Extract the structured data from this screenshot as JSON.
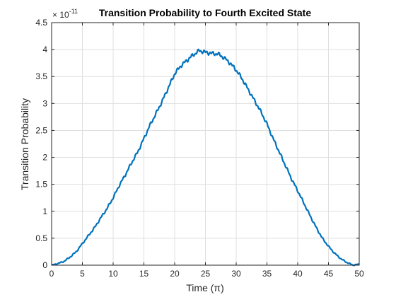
{
  "chart_data": {
    "type": "line",
    "title": "Transition Probability to Fourth Excited State",
    "xlabel": "Time (π)",
    "ylabel": "Transition Probability",
    "y_exponent_base": "× 10",
    "y_exponent_power": "-11",
    "xlim": [
      0,
      50
    ],
    "ylim": [
      0,
      4.5
    ],
    "x_ticks": [
      0,
      5,
      10,
      15,
      20,
      25,
      30,
      35,
      40,
      45,
      50
    ],
    "x_tick_labels": [
      "0",
      "5",
      "10",
      "15",
      "20",
      "25",
      "30",
      "35",
      "40",
      "45",
      "50"
    ],
    "y_ticks": [
      0,
      0.5,
      1,
      1.5,
      2,
      2.5,
      3,
      3.5,
      4,
      4.5
    ],
    "y_tick_labels": [
      "0",
      "0.5",
      "1",
      "1.5",
      "2",
      "2.5",
      "3",
      "3.5",
      "4",
      "4.5"
    ],
    "grid": true,
    "series": [
      {
        "color": "#0072bd",
        "x": [
          0,
          1,
          2,
          3,
          4,
          5,
          6,
          7,
          8,
          9,
          10,
          11,
          12,
          13,
          14,
          15,
          16,
          17,
          18,
          19,
          20,
          21,
          22,
          23,
          24,
          25,
          26,
          27,
          28,
          29,
          30,
          31,
          32,
          33,
          34,
          35,
          36,
          37,
          38,
          39,
          40,
          41,
          42,
          43,
          44,
          45,
          46,
          47,
          48,
          49,
          50
        ],
        "y": [
          0.0,
          0.03,
          0.07,
          0.15,
          0.25,
          0.4,
          0.55,
          0.7,
          0.88,
          1.05,
          1.25,
          1.48,
          1.68,
          1.9,
          2.1,
          2.35,
          2.6,
          2.82,
          3.05,
          3.3,
          3.55,
          3.7,
          3.8,
          3.9,
          3.98,
          3.95,
          3.93,
          3.92,
          3.85,
          3.75,
          3.62,
          3.45,
          3.25,
          3.05,
          2.85,
          2.62,
          2.35,
          2.1,
          1.85,
          1.6,
          1.38,
          1.15,
          0.92,
          0.7,
          0.5,
          0.35,
          0.22,
          0.12,
          0.05,
          0.0,
          0.02
        ]
      }
    ]
  }
}
